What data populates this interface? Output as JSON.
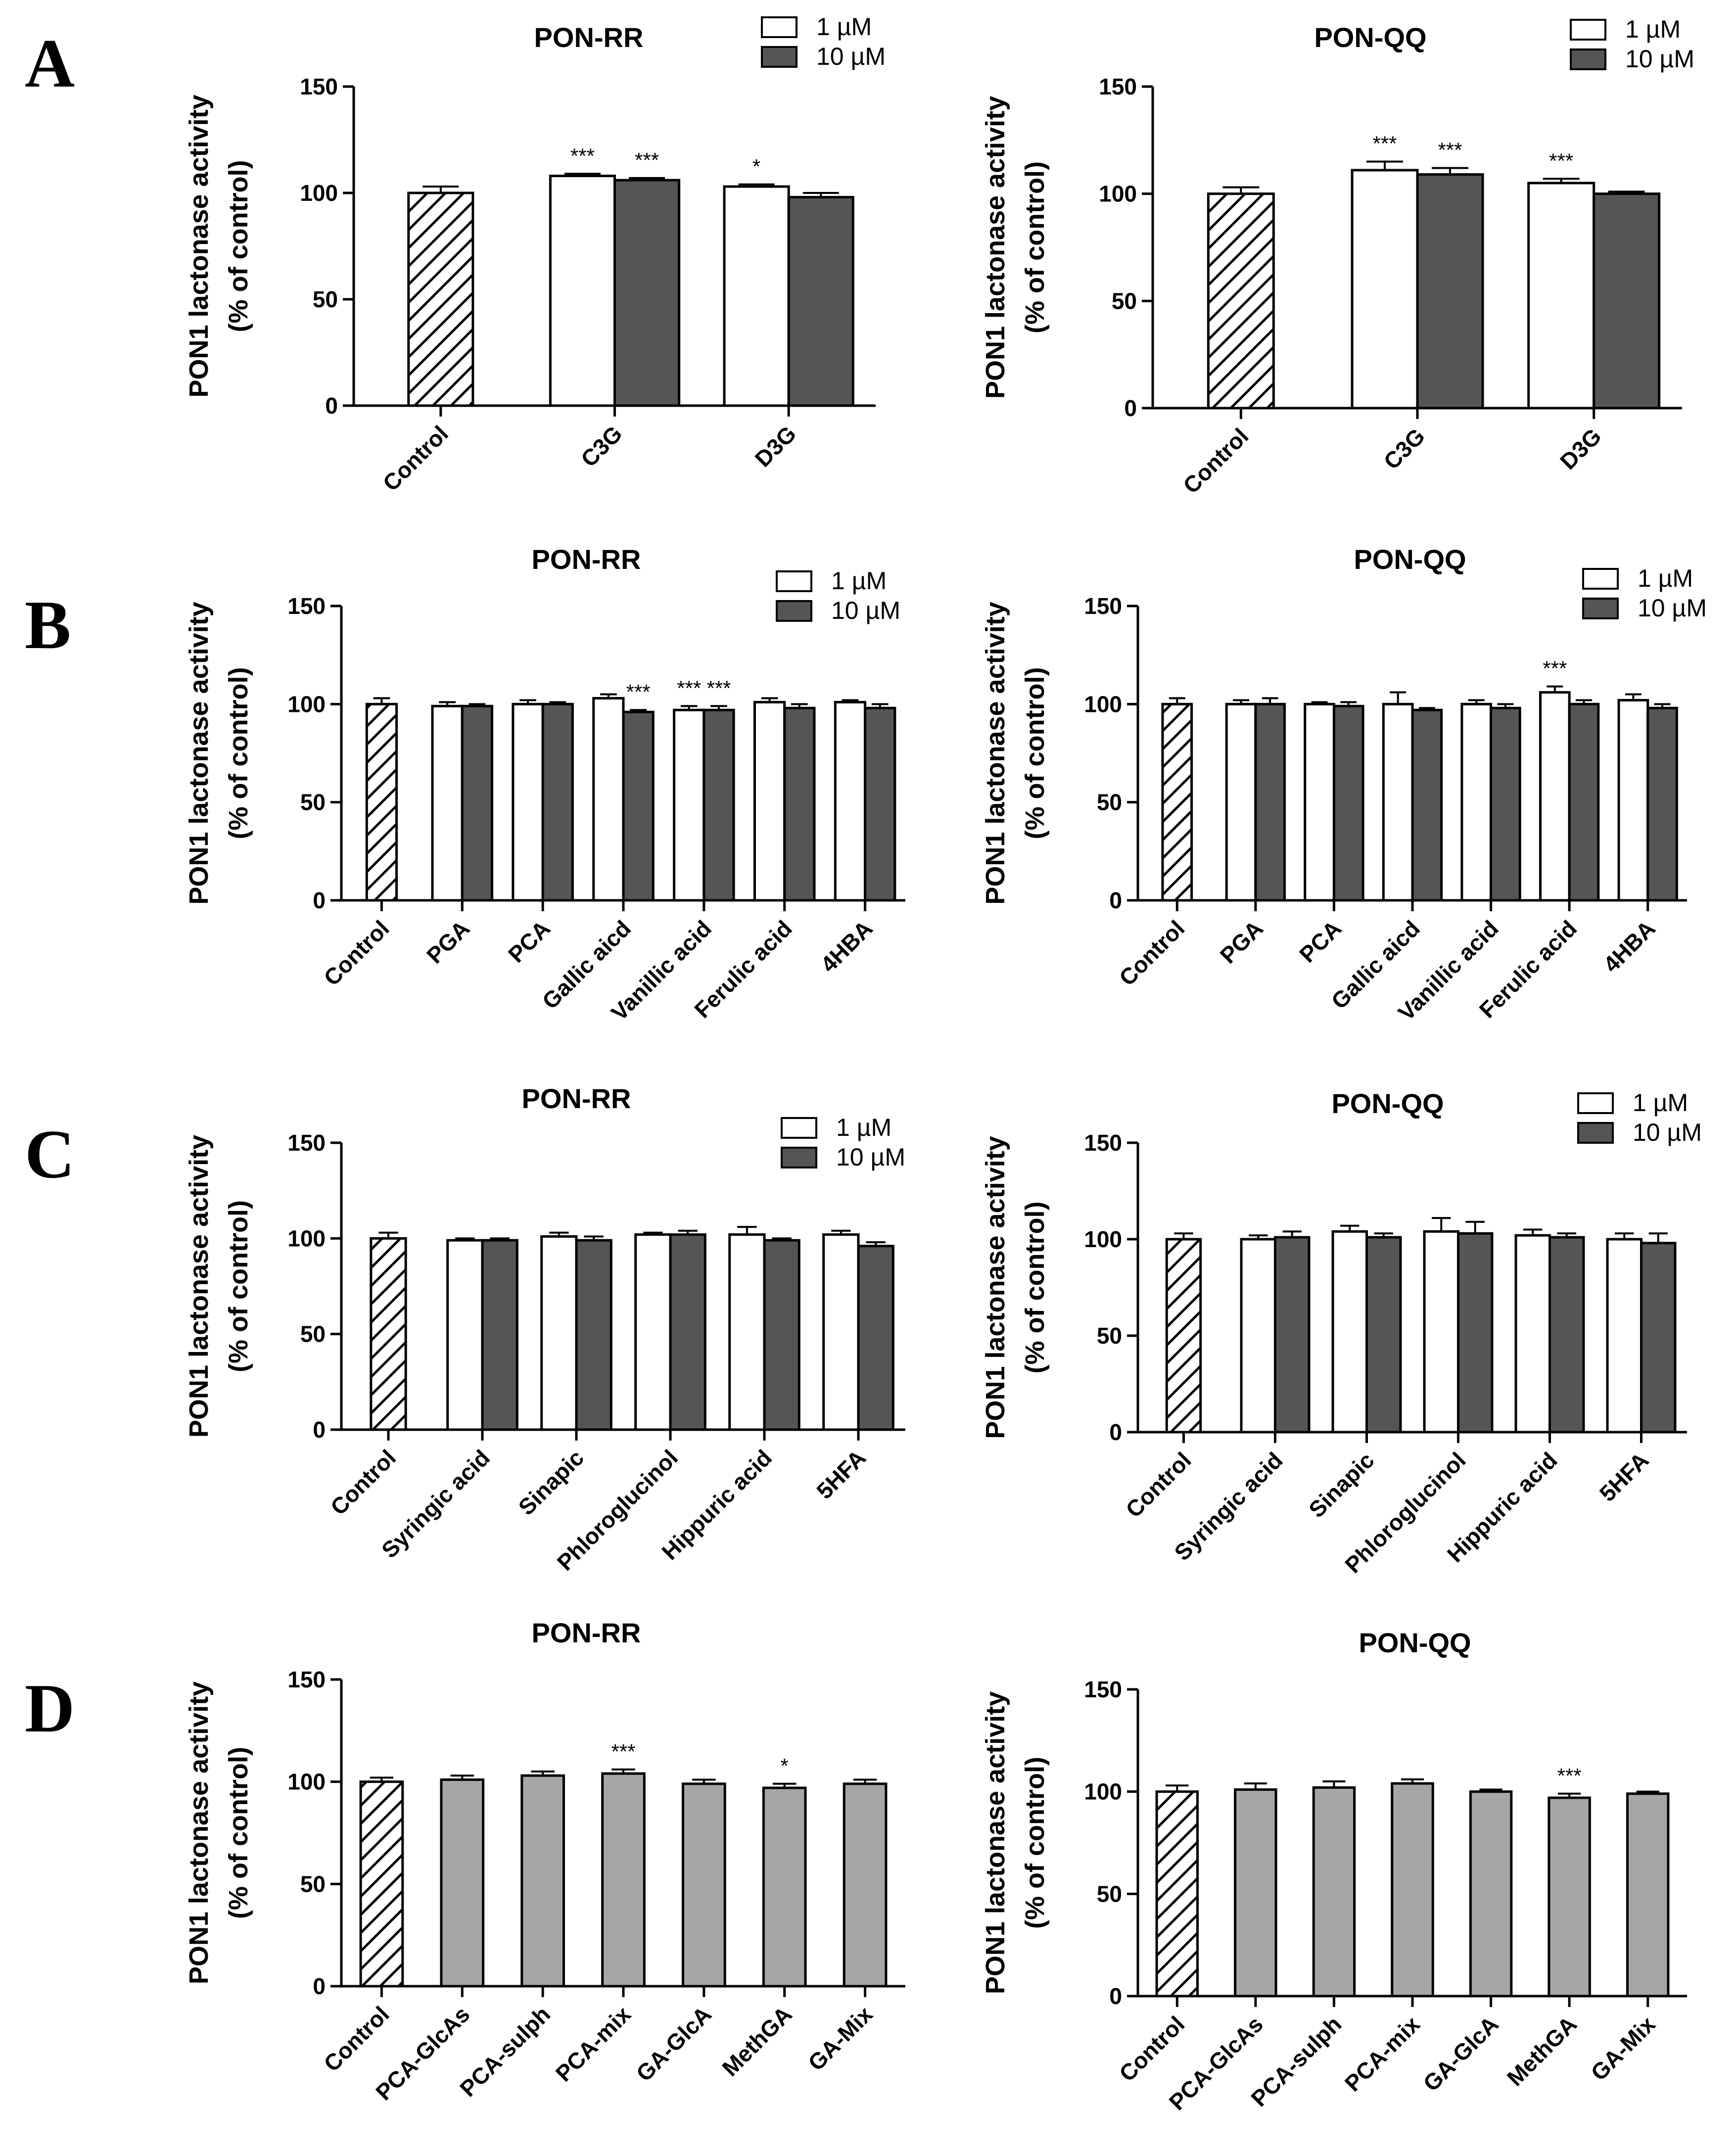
{
  "chart_data": [
    {
      "id": "A-RR",
      "panel": "A",
      "type": "bar",
      "title": "PON-RR",
      "ylabel": "PON1 lactonase activity\n(% of control)",
      "ylim": [
        0,
        150
      ],
      "yticks": [
        0,
        50,
        100,
        150
      ],
      "legend": [
        "1 µM",
        "10 µM"
      ],
      "categories": [
        "Control",
        "C3G",
        "D3G"
      ],
      "control": {
        "value": 100,
        "err": 3
      },
      "series": [
        {
          "name": "1 µM",
          "values": [
            null,
            108,
            103
          ],
          "errors": [
            null,
            1,
            1
          ],
          "stars": [
            null,
            "***",
            "*"
          ]
        },
        {
          "name": "10 µM",
          "values": [
            null,
            106,
            98
          ],
          "errors": [
            null,
            1,
            2
          ],
          "stars": [
            null,
            "***",
            ""
          ]
        }
      ]
    },
    {
      "id": "A-QQ",
      "panel": "A",
      "type": "bar",
      "title": "PON-QQ",
      "ylabel": "PON1 lactonase activity\n(% of control)",
      "ylim": [
        0,
        150
      ],
      "yticks": [
        0,
        50,
        100,
        150
      ],
      "legend": [
        "1 µM",
        "10 µM"
      ],
      "categories": [
        "Control",
        "C3G",
        "D3G"
      ],
      "control": {
        "value": 100,
        "err": 3
      },
      "series": [
        {
          "name": "1 µM",
          "values": [
            null,
            111,
            105
          ],
          "errors": [
            null,
            4,
            2
          ],
          "stars": [
            null,
            "***",
            "***"
          ]
        },
        {
          "name": "10 µM",
          "values": [
            null,
            109,
            100
          ],
          "errors": [
            null,
            3,
            1
          ],
          "stars": [
            null,
            "***",
            ""
          ]
        }
      ]
    },
    {
      "id": "B-RR",
      "panel": "B",
      "type": "bar",
      "title": "PON-RR",
      "ylabel": "PON1 lactonase activity\n(% of control)",
      "ylim": [
        0,
        150
      ],
      "yticks": [
        0,
        50,
        100,
        150
      ],
      "legend": [
        "1 µM",
        "10 µM"
      ],
      "categories": [
        "Control",
        "PGA",
        "PCA",
        "Gallic aicd",
        "Vanillic acid",
        "Ferulic acid",
        "4HBA"
      ],
      "control": {
        "value": 100,
        "err": 3
      },
      "series": [
        {
          "name": "1 µM",
          "values": [
            null,
            99,
            100,
            103,
            97,
            101,
            101
          ],
          "errors": [
            null,
            2,
            2,
            2,
            2,
            2,
            1
          ],
          "stars": [
            null,
            "",
            "",
            "",
            "***",
            "",
            ""
          ]
        },
        {
          "name": "10 µM",
          "values": [
            null,
            99,
            100,
            96,
            97,
            98,
            98
          ],
          "errors": [
            null,
            1,
            1,
            1,
            2,
            2,
            2
          ],
          "stars": [
            null,
            "",
            "",
            "***",
            "***",
            "",
            ""
          ]
        }
      ]
    },
    {
      "id": "B-QQ",
      "panel": "B",
      "type": "bar",
      "title": "PON-QQ",
      "ylabel": "PON1 lactonase activity\n(% of control)",
      "ylim": [
        0,
        150
      ],
      "yticks": [
        0,
        50,
        100,
        150
      ],
      "legend": [
        "1 µM",
        "10 µM"
      ],
      "categories": [
        "Control",
        "PGA",
        "PCA",
        "Gallic aicd",
        "Vanillic acid",
        "Ferulic acid",
        "4HBA"
      ],
      "control": {
        "value": 100,
        "err": 3
      },
      "series": [
        {
          "name": "1 µM",
          "values": [
            null,
            100,
            100,
            100,
            100,
            106,
            102
          ],
          "errors": [
            null,
            2,
            1,
            6,
            2,
            3,
            3
          ],
          "stars": [
            null,
            "",
            "",
            "",
            "",
            "***",
            ""
          ]
        },
        {
          "name": "10 µM",
          "values": [
            null,
            100,
            99,
            97,
            98,
            100,
            98
          ],
          "errors": [
            null,
            3,
            2,
            1,
            2,
            2,
            2
          ],
          "stars": [
            null,
            "",
            "",
            "",
            "",
            "",
            ""
          ]
        }
      ]
    },
    {
      "id": "C-RR",
      "panel": "C",
      "type": "bar",
      "title": "PON-RR",
      "ylabel": "PON1 lactonase activity\n(% of control)",
      "ylim": [
        0,
        150
      ],
      "yticks": [
        0,
        50,
        100,
        150
      ],
      "legend": [
        "1 µM",
        "10 µM"
      ],
      "categories": [
        "Control",
        "Syringic acid",
        "Sinapic",
        "Phloroglucinol",
        "Hippuric acid",
        "5HFA"
      ],
      "control": {
        "value": 100,
        "err": 3
      },
      "series": [
        {
          "name": "1 µM",
          "values": [
            null,
            99,
            101,
            102,
            102,
            102
          ],
          "errors": [
            null,
            1,
            2,
            1,
            4,
            2
          ],
          "stars": [
            null,
            "",
            "",
            "",
            "",
            ""
          ]
        },
        {
          "name": "10 µM",
          "values": [
            null,
            99,
            99,
            102,
            99,
            96
          ],
          "errors": [
            null,
            1,
            2,
            2,
            1,
            2
          ],
          "stars": [
            null,
            "",
            "",
            "",
            "",
            ""
          ]
        }
      ]
    },
    {
      "id": "C-QQ",
      "panel": "C",
      "type": "bar",
      "title": "PON-QQ",
      "ylabel": "PON1 lactonase activity\n(% of control)",
      "ylim": [
        0,
        150
      ],
      "yticks": [
        0,
        50,
        100,
        150
      ],
      "legend": [
        "1 µM",
        "10 µM"
      ],
      "categories": [
        "Control",
        "Syringic acid",
        "Sinapic",
        "Phloroglucinol",
        "Hippuric acid",
        "5HFA"
      ],
      "control": {
        "value": 100,
        "err": 3
      },
      "series": [
        {
          "name": "1 µM",
          "values": [
            null,
            100,
            104,
            104,
            102,
            100
          ],
          "errors": [
            null,
            2,
            3,
            7,
            3,
            3
          ],
          "stars": [
            null,
            "",
            "",
            "",
            "",
            ""
          ]
        },
        {
          "name": "10 µM",
          "values": [
            null,
            101,
            101,
            103,
            101,
            98
          ],
          "errors": [
            null,
            3,
            2,
            6,
            2,
            5
          ],
          "stars": [
            null,
            "",
            "",
            "",
            "",
            ""
          ]
        }
      ]
    },
    {
      "id": "D-RR",
      "panel": "D",
      "type": "bar",
      "title": "PON-RR",
      "ylabel": "PON1 lactonase activity\n(% of control)",
      "ylim": [
        0,
        150
      ],
      "yticks": [
        0,
        50,
        100,
        150
      ],
      "legend": [],
      "categories": [
        "Control",
        "PCA-GlcAs",
        "PCA-sulph",
        "PCA-mix",
        "GA-GlcA",
        "MethGA",
        "GA-Mix"
      ],
      "control": {
        "value": 100,
        "err": 2
      },
      "series": [
        {
          "name": "",
          "values": [
            null,
            101,
            103,
            104,
            99,
            97,
            99
          ],
          "errors": [
            null,
            2,
            2,
            2,
            2,
            2,
            2
          ],
          "stars": [
            null,
            "",
            "",
            "***",
            "",
            "*",
            ""
          ]
        }
      ]
    },
    {
      "id": "D-QQ",
      "panel": "D",
      "type": "bar",
      "title": "PON-QQ",
      "ylabel": "PON1 lactonase activity\n(% of control)",
      "ylim": [
        0,
        150
      ],
      "yticks": [
        0,
        50,
        100,
        150
      ],
      "legend": [],
      "categories": [
        "Control",
        "PCA-GlcAs",
        "PCA-sulph",
        "PCA-mix",
        "GA-GlcA",
        "MethGA",
        "GA-Mix"
      ],
      "control": {
        "value": 100,
        "err": 3
      },
      "series": [
        {
          "name": "",
          "values": [
            null,
            101,
            102,
            104,
            100,
            97,
            99
          ],
          "errors": [
            null,
            3,
            3,
            2,
            1,
            2,
            1
          ],
          "stars": [
            null,
            "",
            "",
            "",
            "",
            "***",
            ""
          ]
        }
      ]
    }
  ],
  "colors": {
    "one_uM": "#ffffff",
    "ten_uM": "#555555",
    "metabolite": "#a6a6a8",
    "axis": "#000000"
  }
}
